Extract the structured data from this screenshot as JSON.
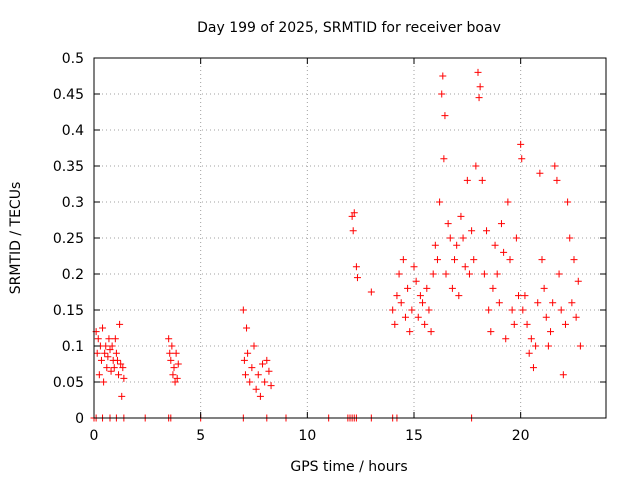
{
  "chart_data": {
    "type": "scatter",
    "title": "Day 199 of 2025, SRMTID for receiver boav",
    "xlabel": "GPS time / hours",
    "ylabel": "SRMTID / TECUs",
    "xlim": [
      0,
      24
    ],
    "ylim": [
      0,
      0.5
    ],
    "xticks": [
      0,
      5,
      10,
      15,
      20
    ],
    "xtick_labels": [
      "0",
      "5",
      "10",
      "15",
      "20"
    ],
    "yticks": [
      0,
      0.05,
      0.1,
      0.15,
      0.2,
      0.25,
      0.3,
      0.35,
      0.4,
      0.45,
      0.5
    ],
    "ytick_labels": [
      "0",
      "0.05",
      "0.1",
      "0.15",
      "0.2",
      "0.25",
      "0.3",
      "0.35",
      "0.4",
      "0.45",
      "0.5"
    ],
    "grid": true,
    "legend": "none",
    "marker": "+",
    "color": "#ff0000",
    "series": [
      {
        "name": "boav",
        "points": [
          [
            0.1,
            0.12
          ],
          [
            0.15,
            0.09
          ],
          [
            0.2,
            0.11
          ],
          [
            0.25,
            0.06
          ],
          [
            0.3,
            0.1
          ],
          [
            0.35,
            0.08
          ],
          [
            0.4,
            0.125
          ],
          [
            0.45,
            0.05
          ],
          [
            0.5,
            0.09
          ],
          [
            0.55,
            0.1
          ],
          [
            0.6,
            0.07
          ],
          [
            0.65,
            0.085
          ],
          [
            0.7,
            0.11
          ],
          [
            0.75,
            0.095
          ],
          [
            0.8,
            0.065
          ],
          [
            0.85,
            0.1
          ],
          [
            0.9,
            0.08
          ],
          [
            0.95,
            0.07
          ],
          [
            1.0,
            0.11
          ],
          [
            1.05,
            0.09
          ],
          [
            1.1,
            0.08
          ],
          [
            1.15,
            0.06
          ],
          [
            1.2,
            0.13
          ],
          [
            1.25,
            0.075
          ],
          [
            1.3,
            0.03
          ],
          [
            1.35,
            0.07
          ],
          [
            1.4,
            0.055
          ],
          [
            3.5,
            0.11
          ],
          [
            3.55,
            0.09
          ],
          [
            3.6,
            0.08
          ],
          [
            3.65,
            0.1
          ],
          [
            3.7,
            0.06
          ],
          [
            3.75,
            0.07
          ],
          [
            3.8,
            0.05
          ],
          [
            3.85,
            0.09
          ],
          [
            3.9,
            0.055
          ],
          [
            3.95,
            0.075
          ],
          [
            7.0,
            0.15
          ],
          [
            7.05,
            0.08
          ],
          [
            7.1,
            0.06
          ],
          [
            7.15,
            0.125
          ],
          [
            7.2,
            0.09
          ],
          [
            7.3,
            0.05
          ],
          [
            7.4,
            0.07
          ],
          [
            7.5,
            0.1
          ],
          [
            7.6,
            0.04
          ],
          [
            7.7,
            0.06
          ],
          [
            7.8,
            0.03
          ],
          [
            7.9,
            0.075
          ],
          [
            8.0,
            0.05
          ],
          [
            8.1,
            0.08
          ],
          [
            8.2,
            0.065
          ],
          [
            8.3,
            0.045
          ],
          [
            12.1,
            0.28
          ],
          [
            12.15,
            0.26
          ],
          [
            12.2,
            0.285
          ],
          [
            12.3,
            0.21
          ],
          [
            12.35,
            0.195
          ],
          [
            13.0,
            0.175
          ],
          [
            14.0,
            0.15
          ],
          [
            14.1,
            0.13
          ],
          [
            14.2,
            0.17
          ],
          [
            14.3,
            0.2
          ],
          [
            14.4,
            0.16
          ],
          [
            14.5,
            0.22
          ],
          [
            14.6,
            0.14
          ],
          [
            14.7,
            0.18
          ],
          [
            14.8,
            0.12
          ],
          [
            14.9,
            0.15
          ],
          [
            15.0,
            0.21
          ],
          [
            15.1,
            0.19
          ],
          [
            15.2,
            0.14
          ],
          [
            15.3,
            0.17
          ],
          [
            15.4,
            0.16
          ],
          [
            15.5,
            0.13
          ],
          [
            15.6,
            0.18
          ],
          [
            15.7,
            0.15
          ],
          [
            15.8,
            0.12
          ],
          [
            15.9,
            0.2
          ],
          [
            16.0,
            0.24
          ],
          [
            16.1,
            0.22
          ],
          [
            16.2,
            0.3
          ],
          [
            16.3,
            0.45
          ],
          [
            16.35,
            0.475
          ],
          [
            16.4,
            0.36
          ],
          [
            16.45,
            0.42
          ],
          [
            16.5,
            0.2
          ],
          [
            16.6,
            0.27
          ],
          [
            16.7,
            0.25
          ],
          [
            16.8,
            0.18
          ],
          [
            16.9,
            0.22
          ],
          [
            17.0,
            0.24
          ],
          [
            17.1,
            0.17
          ],
          [
            17.2,
            0.28
          ],
          [
            17.3,
            0.25
          ],
          [
            17.4,
            0.21
          ],
          [
            17.5,
            0.33
          ],
          [
            17.6,
            0.2
          ],
          [
            17.7,
            0.26
          ],
          [
            17.8,
            0.22
          ],
          [
            17.9,
            0.35
          ],
          [
            18.0,
            0.48
          ],
          [
            18.05,
            0.445
          ],
          [
            18.1,
            0.46
          ],
          [
            18.2,
            0.33
          ],
          [
            18.3,
            0.2
          ],
          [
            18.4,
            0.26
          ],
          [
            18.5,
            0.15
          ],
          [
            18.6,
            0.12
          ],
          [
            18.7,
            0.18
          ],
          [
            18.8,
            0.24
          ],
          [
            18.9,
            0.2
          ],
          [
            19.0,
            0.16
          ],
          [
            19.1,
            0.27
          ],
          [
            19.2,
            0.23
          ],
          [
            19.3,
            0.11
          ],
          [
            19.4,
            0.3
          ],
          [
            19.5,
            0.22
          ],
          [
            19.6,
            0.15
          ],
          [
            19.7,
            0.13
          ],
          [
            19.8,
            0.25
          ],
          [
            19.9,
            0.17
          ],
          [
            20.0,
            0.38
          ],
          [
            20.05,
            0.36
          ],
          [
            20.1,
            0.15
          ],
          [
            20.2,
            0.17
          ],
          [
            20.3,
            0.13
          ],
          [
            20.4,
            0.09
          ],
          [
            20.5,
            0.11
          ],
          [
            20.6,
            0.07
          ],
          [
            20.7,
            0.1
          ],
          [
            20.8,
            0.16
          ],
          [
            20.9,
            0.34
          ],
          [
            21.0,
            0.22
          ],
          [
            21.1,
            0.18
          ],
          [
            21.2,
            0.14
          ],
          [
            21.3,
            0.1
          ],
          [
            21.4,
            0.12
          ],
          [
            21.5,
            0.16
          ],
          [
            21.6,
            0.35
          ],
          [
            21.7,
            0.33
          ],
          [
            21.8,
            0.2
          ],
          [
            21.9,
            0.15
          ],
          [
            22.0,
            0.06
          ],
          [
            22.1,
            0.13
          ],
          [
            22.2,
            0.3
          ],
          [
            22.3,
            0.25
          ],
          [
            22.4,
            0.16
          ],
          [
            22.5,
            0.22
          ],
          [
            22.6,
            0.14
          ],
          [
            22.7,
            0.19
          ],
          [
            22.8,
            0.1
          ]
        ],
        "zero_points": [
          0.0,
          0.1,
          0.4,
          0.75,
          1.05,
          1.4,
          2.4,
          3.5,
          3.6,
          5.0,
          7.0,
          8.1,
          9.0,
          11.0,
          11.9,
          12.0,
          12.1,
          12.2,
          12.3,
          13.0,
          14.0,
          14.2,
          17.7
        ]
      }
    ]
  }
}
